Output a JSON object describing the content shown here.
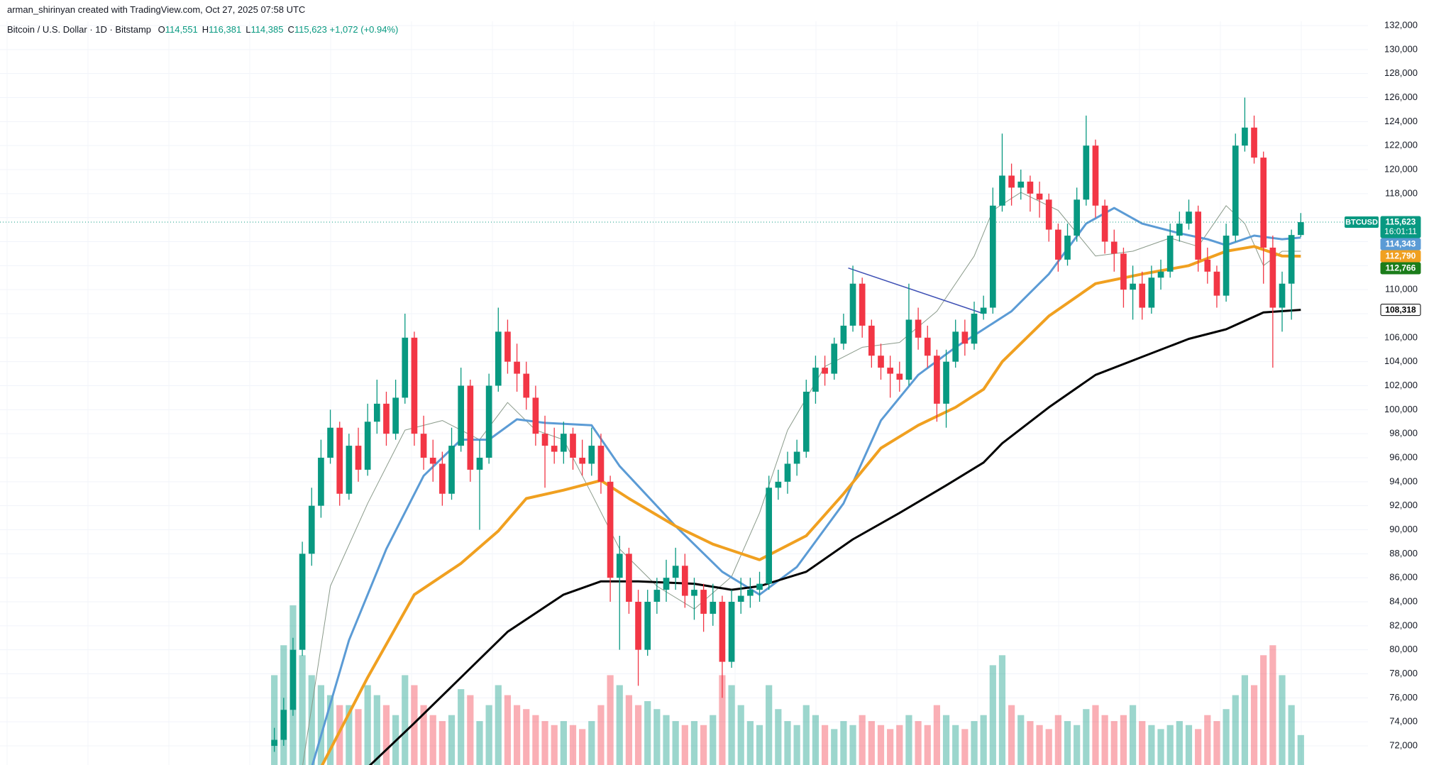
{
  "chart_data": {
    "type": "candlestick",
    "attribution": "arman_shirinyan created with TradingView.com, Oct 27, 2025 07:58 UTC",
    "symbol_line": "Bitcoin / U.S. Dollar · 1D · Bitstamp",
    "ohlc_legend": [
      {
        "key": "O",
        "label": "114,551"
      },
      {
        "key": "H",
        "label": "116,381"
      },
      {
        "key": "L",
        "label": "114,385"
      },
      {
        "key": "C",
        "label": "115,623"
      }
    ],
    "change_label": "+1,072 (+0.94%)",
    "xlim": [
      -29.4,
      117.2
    ],
    "ylim": [
      72000,
      132000
    ],
    "yticks": [
      {
        "value": 72000,
        "label": "72,000"
      },
      {
        "value": 74000,
        "label": "74,000"
      },
      {
        "value": 76000,
        "label": "76,000"
      },
      {
        "value": 78000,
        "label": "78,000"
      },
      {
        "value": 80000,
        "label": "80,000"
      },
      {
        "value": 82000,
        "label": "82,000"
      },
      {
        "value": 84000,
        "label": "84,000"
      },
      {
        "value": 86000,
        "label": "86,000"
      },
      {
        "value": 88000,
        "label": "88,000"
      },
      {
        "value": 90000,
        "label": "90,000"
      },
      {
        "value": 92000,
        "label": "92,000"
      },
      {
        "value": 94000,
        "label": "94,000"
      },
      {
        "value": 96000,
        "label": "96,000"
      },
      {
        "value": 98000,
        "label": "98,000"
      },
      {
        "value": 100000,
        "label": "100,000"
      },
      {
        "value": 102000,
        "label": "102,000"
      },
      {
        "value": 104000,
        "label": "104,000"
      },
      {
        "value": 106000,
        "label": "106,000"
      },
      {
        "value": 108000,
        "label": "108,000"
      },
      {
        "value": 110000,
        "label": "110,000"
      },
      {
        "value": 112000,
        "label": "112,000"
      },
      {
        "value": 114000,
        "label": "114,000"
      },
      {
        "value": 116000,
        "label": "116,000"
      },
      {
        "value": 118000,
        "label": "118,000"
      },
      {
        "value": 120000,
        "label": "120,000"
      },
      {
        "value": 122000,
        "label": "122,000"
      },
      {
        "value": 124000,
        "label": "124,000"
      },
      {
        "value": 126000,
        "label": "126,000"
      },
      {
        "value": 128000,
        "label": "128,000"
      },
      {
        "value": 130000,
        "label": "130,000"
      },
      {
        "value": 132000,
        "label": "132,000"
      }
    ],
    "grid": true,
    "up_color": "#089981",
    "down_color": "#f23645",
    "open": [
      72000,
      72500,
      75000,
      80000,
      88000,
      92000,
      96000,
      98500,
      93000,
      97000,
      95000,
      99000,
      100500,
      98000,
      101000,
      106000,
      98000,
      96000,
      95500,
      93000,
      97000,
      102000,
      95000,
      96000,
      102000,
      106500,
      104000,
      103000,
      101000,
      98000,
      97000,
      96500,
      98000,
      96000,
      95500,
      97000,
      94000,
      86000,
      88000,
      84000,
      80000,
      84000,
      85000,
      86000,
      87000,
      84500,
      85000,
      83000,
      84000,
      79000,
      84000,
      84500,
      85000,
      85500,
      93500,
      94000,
      95500,
      96500,
      101500,
      103500,
      103000,
      105500,
      107000,
      110500,
      107000,
      104500,
      103500,
      103000,
      102500,
      107500,
      106000,
      104500,
      100500,
      104000,
      106500,
      105500,
      108000,
      108500,
      117000,
      119500,
      118500,
      119000,
      118000,
      117500,
      115000,
      112500,
      114500,
      117500,
      122000,
      117000,
      114000,
      113000,
      110000,
      110500,
      108500,
      111000,
      111500,
      114500,
      115500,
      116500,
      112500,
      111500,
      109500,
      114500,
      122000,
      123500,
      121000,
      113500,
      108500,
      110500,
      114551
    ],
    "high": [
      73500,
      76000,
      81000,
      89000,
      93500,
      97500,
      100000,
      99000,
      98000,
      98500,
      100500,
      102500,
      101500,
      102500,
      108000,
      106500,
      99500,
      97500,
      96500,
      98500,
      103500,
      102500,
      97500,
      103000,
      108500,
      107500,
      105500,
      104000,
      102000,
      99500,
      98500,
      99000,
      98500,
      97500,
      98500,
      98000,
      94500,
      89500,
      88500,
      85000,
      85000,
      86000,
      87500,
      88500,
      88000,
      86000,
      85500,
      85500,
      84500,
      85000,
      86000,
      86000,
      86500,
      94500,
      95000,
      96500,
      97500,
      102500,
      104500,
      104500,
      106000,
      108000,
      112000,
      111000,
      107500,
      105500,
      104500,
      104000,
      110500,
      108500,
      107000,
      105000,
      105000,
      107500,
      107500,
      109000,
      109500,
      118500,
      123000,
      120500,
      120000,
      119500,
      119000,
      118000,
      115500,
      115500,
      118500,
      124500,
      122500,
      117500,
      115000,
      113500,
      112000,
      111500,
      112000,
      112500,
      115500,
      116500,
      117500,
      117000,
      113500,
      112000,
      115500,
      123000,
      126000,
      124500,
      121500,
      114500,
      111500,
      115000,
      116381
    ],
    "low": [
      71500,
      72000,
      74500,
      79500,
      87000,
      91000,
      95500,
      92000,
      92500,
      94000,
      94500,
      98000,
      97000,
      97500,
      100500,
      97000,
      95000,
      94000,
      92000,
      92500,
      96500,
      94000,
      90000,
      95500,
      101500,
      103000,
      101500,
      100000,
      97000,
      93500,
      95500,
      95500,
      95000,
      94500,
      94500,
      93000,
      84000,
      80000,
      83000,
      77000,
      79500,
      83000,
      84000,
      85000,
      83500,
      82500,
      81500,
      82000,
      76000,
      78500,
      83000,
      83500,
      84000,
      85000,
      92500,
      93000,
      94500,
      96000,
      100500,
      102000,
      102500,
      105000,
      106500,
      106000,
      103500,
      102500,
      101000,
      101500,
      102000,
      105000,
      103500,
      99000,
      98500,
      103500,
      104500,
      105000,
      107500,
      108000,
      116500,
      117000,
      117500,
      116500,
      116000,
      114000,
      111500,
      112000,
      114000,
      117000,
      116000,
      113000,
      111500,
      108500,
      107500,
      107500,
      108000,
      110000,
      111000,
      114000,
      115000,
      111500,
      110500,
      108500,
      109000,
      114000,
      121500,
      120500,
      110500,
      103500,
      106500,
      107500,
      114385
    ],
    "close": [
      72500,
      75000,
      80000,
      88000,
      92000,
      96000,
      98500,
      93000,
      97000,
      95000,
      99000,
      100500,
      98000,
      101000,
      106000,
      98000,
      96000,
      95500,
      93000,
      97000,
      102000,
      95000,
      96000,
      102000,
      106500,
      104000,
      103000,
      101000,
      98000,
      97000,
      96500,
      98000,
      96000,
      95500,
      97000,
      94000,
      86000,
      88000,
      84000,
      80000,
      84000,
      85000,
      86000,
      87000,
      84500,
      85000,
      83000,
      84000,
      79000,
      84000,
      84500,
      85000,
      85500,
      93500,
      94000,
      95500,
      96500,
      101500,
      103500,
      103000,
      105500,
      107000,
      110500,
      107000,
      104500,
      103500,
      103000,
      102500,
      107500,
      106000,
      104500,
      100500,
      104000,
      106500,
      105500,
      108000,
      108500,
      117000,
      119500,
      118500,
      119000,
      118000,
      117500,
      115000,
      112500,
      114500,
      117500,
      122000,
      117000,
      114000,
      113000,
      110000,
      110500,
      108500,
      111000,
      111500,
      114500,
      115500,
      116500,
      112500,
      111500,
      109500,
      114500,
      122000,
      123500,
      121000,
      113500,
      108500,
      110500,
      114551,
      115623
    ],
    "volume": [
      45,
      60,
      80,
      55,
      45,
      40,
      35,
      30,
      30,
      28,
      40,
      35,
      30,
      25,
      45,
      40,
      30,
      25,
      22,
      25,
      38,
      35,
      22,
      30,
      40,
      35,
      30,
      28,
      25,
      22,
      20,
      22,
      20,
      18,
      22,
      30,
      45,
      40,
      35,
      30,
      32,
      28,
      25,
      22,
      20,
      22,
      20,
      25,
      45,
      40,
      30,
      22,
      20,
      40,
      28,
      22,
      20,
      30,
      25,
      20,
      18,
      22,
      20,
      25,
      22,
      20,
      18,
      20,
      25,
      22,
      20,
      30,
      25,
      20,
      18,
      22,
      25,
      50,
      55,
      30,
      25,
      22,
      20,
      18,
      25,
      22,
      20,
      28,
      30,
      25,
      22,
      25,
      30,
      22,
      20,
      18,
      20,
      22,
      20,
      18,
      25,
      22,
      28,
      35,
      45,
      40,
      55,
      60,
      45,
      30,
      15
    ],
    "moving_averages": [
      {
        "color": "#8a9a8a",
        "width": 1,
        "x": [
          3,
          6,
          10,
          14,
          18,
          22,
          25,
          28,
          31,
          34,
          37,
          41,
          45,
          49,
          52,
          55,
          59,
          63,
          67,
          71,
          75,
          77,
          80,
          84,
          88,
          92,
          96,
          99,
          102,
          104,
          106,
          108,
          110
        ],
        "values": [
          70200,
          85300,
          92200,
          98300,
          99100,
          97500,
          100600,
          98300,
          97500,
          93000,
          88400,
          85300,
          83400,
          86100,
          91400,
          98300,
          103600,
          105200,
          105600,
          108200,
          112800,
          116600,
          118100,
          116600,
          112800,
          113200,
          114300,
          113600,
          117000,
          115500,
          112000,
          113200,
          113200
        ]
      },
      {
        "color": "#5b9bd5",
        "width": 3,
        "x": [
          4,
          8,
          12,
          16,
          20,
          23,
          26,
          29,
          34,
          37,
          43,
          48,
          52,
          56,
          61,
          65,
          69,
          73,
          76,
          79,
          83,
          87,
          90,
          93,
          97,
          100,
          102,
          105,
          108,
          110
        ],
        "values": [
          70200,
          80800,
          88400,
          94500,
          97500,
          97500,
          99200,
          98900,
          98700,
          95300,
          90300,
          86500,
          84600,
          86900,
          92200,
          99100,
          102900,
          105200,
          106700,
          108200,
          111300,
          115500,
          116800,
          115500,
          114700,
          114200,
          113700,
          114500,
          114200,
          114343
        ],
        "last": {
          "value": 114343,
          "label": "114,343"
        }
      },
      {
        "color": "#f0a020",
        "width": 4,
        "x": [
          5,
          10,
          15,
          20,
          24,
          27,
          31,
          35,
          38,
          43,
          47,
          52,
          57,
          61,
          65,
          69,
          73,
          76,
          78,
          83,
          88,
          93,
          98,
          102,
          105,
          108,
          110
        ],
        "values": [
          70200,
          77700,
          84600,
          87200,
          89900,
          92600,
          93300,
          94100,
          92600,
          90300,
          88800,
          87500,
          89500,
          93000,
          96800,
          98700,
          100200,
          101700,
          104000,
          107800,
          110500,
          111300,
          112000,
          113200,
          113600,
          112800,
          112790
        ],
        "last": {
          "value": 112790,
          "label": "112,790"
        }
      },
      {
        "color": "#000000",
        "width": 3,
        "x": [
          10,
          15,
          20,
          25,
          31,
          35,
          39,
          45,
          49,
          52,
          57,
          62,
          67,
          72,
          76,
          78,
          83,
          88,
          93,
          98,
          102,
          106,
          110
        ],
        "values": [
          70200,
          73900,
          77700,
          81500,
          84600,
          85700,
          85700,
          85500,
          85000,
          85300,
          86500,
          89200,
          91400,
          93700,
          95600,
          97200,
          100200,
          102900,
          104400,
          105900,
          106700,
          108100,
          108318
        ],
        "last": {
          "value": 108318,
          "label": "108,318"
        }
      }
    ],
    "trendline": {
      "color": "#3f51b5",
      "x": [
        61.5,
        76
      ],
      "values": [
        111800,
        108000
      ]
    },
    "price_tag": {
      "symbol": "BTCUSD",
      "value": 115623,
      "label": "115,623",
      "countdown": "16:01:11",
      "color": "#089981"
    },
    "extra_tag": {
      "value": 112766,
      "label": "112,766",
      "color": "#1b7d1b"
    }
  }
}
